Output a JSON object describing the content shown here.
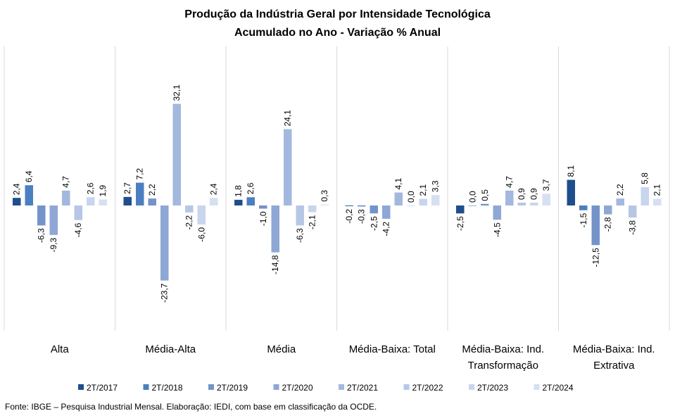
{
  "chart_data": {
    "type": "bar",
    "title": "Produção da Indústria Geral por Intensidade Tecnológica",
    "subtitle": "Acumulado no Ano - Variação % Anual",
    "categories": [
      [
        "Alta"
      ],
      [
        "Média-Alta"
      ],
      [
        "Média"
      ],
      [
        "Média-Baixa: Total"
      ],
      [
        "Média-Baixa: Ind.",
        "Transformação"
      ],
      [
        "Média-Baixa: Ind.",
        "Extrativa"
      ]
    ],
    "series": [
      {
        "name": "2T/2017",
        "color": "#1f4e8c",
        "values": [
          2.4,
          2.7,
          1.8,
          -0.2,
          -2.5,
          8.1
        ],
        "labels": [
          "2,4",
          "2,7",
          "1,8",
          "-0,2",
          "-2,5",
          "8,1"
        ]
      },
      {
        "name": "2T/2018",
        "color": "#4b7fc1",
        "values": [
          6.4,
          7.2,
          2.6,
          -0.3,
          0.0,
          -1.5
        ],
        "labels": [
          "6,4",
          "7,2",
          "2,6",
          "-0,3",
          "0,0",
          "-1,5"
        ]
      },
      {
        "name": "2T/2019",
        "color": "#7493c9",
        "values": [
          -6.3,
          2.2,
          -1.0,
          -2.5,
          0.5,
          -12.5
        ],
        "labels": [
          "-6,3",
          "2,2",
          "-1,0",
          "-2,5",
          "0,5",
          "-12,5"
        ]
      },
      {
        "name": "2T/2020",
        "color": "#8ea7d5",
        "values": [
          -9.3,
          -23.7,
          -14.8,
          -4.2,
          -4.5,
          -2.8
        ],
        "labels": [
          "-9,3",
          "-23,7",
          "-14,8",
          "-4,2",
          "-4,5",
          "-2,8"
        ]
      },
      {
        "name": "2T/2021",
        "color": "#a3b8de",
        "values": [
          4.7,
          32.1,
          24.1,
          4.1,
          4.7,
          2.2
        ],
        "labels": [
          "4,7",
          "32,1",
          "24,1",
          "4,1",
          "4,7",
          "2,2"
        ]
      },
      {
        "name": "2T/2022",
        "color": "#b6c7e6",
        "values": [
          -4.6,
          -2.2,
          -6.3,
          0.0,
          0.9,
          -3.8
        ],
        "labels": [
          "-4,6",
          "-2,2",
          "-6,3",
          "0,0",
          "0,9",
          "-3,8"
        ]
      },
      {
        "name": "2T/2023",
        "color": "#c8d5ed",
        "values": [
          2.6,
          -6.0,
          -2.1,
          2.1,
          0.9,
          5.8
        ],
        "labels": [
          "2,6",
          "-6,0",
          "-2,1",
          "2,1",
          "0,9",
          "5,8"
        ]
      },
      {
        "name": "2T/2024",
        "color": "#d6e0f2",
        "values": [
          1.9,
          2.4,
          0.3,
          3.3,
          3.7,
          2.1
        ],
        "labels": [
          "1,9",
          "2,4",
          "0,3",
          "3,3",
          "3,7",
          "2,1"
        ]
      }
    ],
    "legend_position": "bottom",
    "grid": false,
    "axis_separator_color": "#d9d9d9"
  },
  "footer": {
    "source": "Fonte: IBGE – Pesquisa Industrial Mensal. Elaboração: IEDI, com base em classificação da OCDE."
  }
}
